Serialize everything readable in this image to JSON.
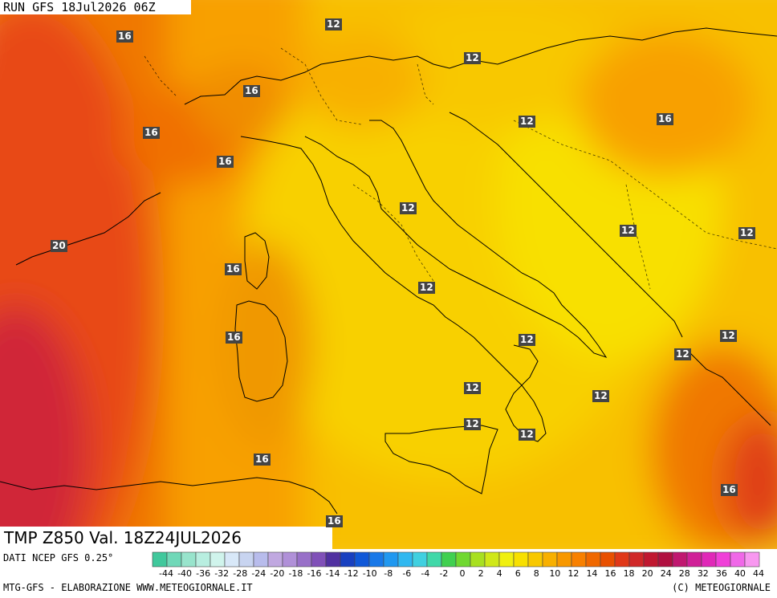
{
  "run_label": "RUN GFS 18Jul2026 06Z",
  "title": "TMP Z850 Val. 18Z24JUL2026",
  "source": "DATI NCEP GFS 0.25°",
  "footer_left": "MTG-GFS - ELABORAZIONE WWW.METEOGIORNALE.IT",
  "footer_right": "(C) METEOGIORNALE",
  "isotherm_labels": [
    {
      "text": "16",
      "at": "north-west alps"
    },
    {
      "text": "12",
      "at": "austria"
    },
    {
      "text": "12",
      "at": "slovenia"
    },
    {
      "text": "16",
      "at": "aosta"
    },
    {
      "text": "16",
      "at": "western alps"
    },
    {
      "text": "16",
      "at": "liguria"
    },
    {
      "text": "12",
      "at": "croatia"
    },
    {
      "text": "16",
      "at": "hungary"
    },
    {
      "text": "12",
      "at": "tuscany"
    },
    {
      "text": "20",
      "at": "france"
    },
    {
      "text": "16",
      "at": "corsica"
    },
    {
      "text": "12",
      "at": "bosnia"
    },
    {
      "text": "12",
      "at": "serbia"
    },
    {
      "text": "12",
      "at": "lazio"
    },
    {
      "text": "16",
      "at": "sardinia"
    },
    {
      "text": "12",
      "at": "puglia"
    },
    {
      "text": "12",
      "at": "albania"
    },
    {
      "text": "12",
      "at": "macedonia"
    },
    {
      "text": "12",
      "at": "tyrrhenian"
    },
    {
      "text": "12",
      "at": "ionian"
    },
    {
      "text": "12",
      "at": "tyrrhenian-south"
    },
    {
      "text": "12",
      "at": "calabria"
    },
    {
      "text": "16",
      "at": "algeria coast"
    },
    {
      "text": "16",
      "at": "greece"
    },
    {
      "text": "16",
      "at": "sicily channel"
    }
  ],
  "scale_ticks": [
    "-44",
    "-40",
    "-36",
    "-32",
    "-28",
    "-24",
    "-20",
    "-18",
    "-16",
    "-14",
    "-12",
    "-10",
    "-8",
    "-6",
    "-4",
    "-2",
    "0",
    "2",
    "4",
    "6",
    "8",
    "10",
    "12",
    "14",
    "16",
    "18",
    "20",
    "24",
    "28",
    "32",
    "36",
    "40",
    "44"
  ],
  "scale_colors": [
    "#40c89c",
    "#70d8b8",
    "#98e4cc",
    "#b8eee0",
    "#d0f4ec",
    "#d8e8f8",
    "#c8d4f0",
    "#b8bcec",
    "#c0a8e0",
    "#b090d8",
    "#9870c8",
    "#8050b8",
    "#5030a0",
    "#1840c0",
    "#1058d8",
    "#1878e8",
    "#2098f0",
    "#30b8f0",
    "#40d0e0",
    "#40d8a8",
    "#40d050",
    "#70d830",
    "#a8e020",
    "#d0e818",
    "#f0f010",
    "#f8e000",
    "#f8c800",
    "#f8b000",
    "#f89800",
    "#f88000",
    "#f06800",
    "#e85000",
    "#e03818",
    "#d02828",
    "#c01830",
    "#b01040",
    "#c01870",
    "#d02098",
    "#e028b8",
    "#f040d8",
    "#f068e8",
    "#f898f0"
  ]
}
